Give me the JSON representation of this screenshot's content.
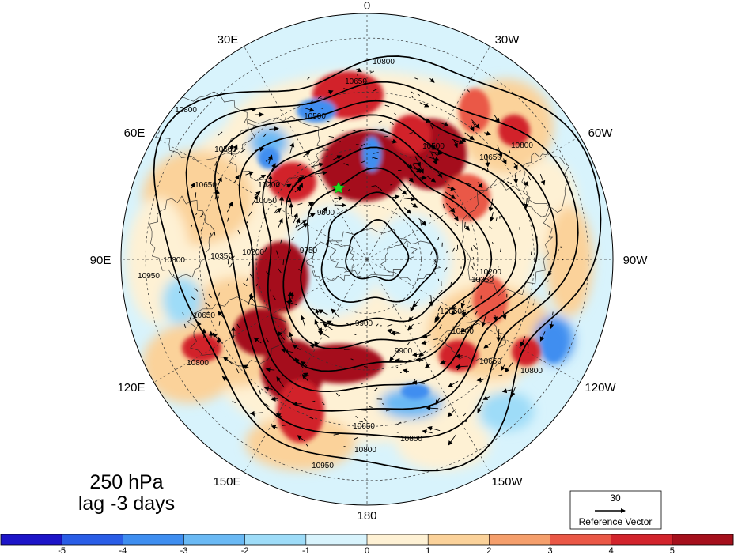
{
  "figure": {
    "level_label": "250 hPa",
    "lag_label": "lag -3 days"
  },
  "longitude_labels": [
    "0",
    "30W",
    "60W",
    "90W",
    "120W",
    "150W",
    "180",
    "150E",
    "120E",
    "90E",
    "60E",
    "30E"
  ],
  "contour_labels": [
    "10800",
    "10650",
    "10500",
    "10350",
    "10200",
    "10050",
    "9900",
    "9750",
    "10950"
  ],
  "colorbar": {
    "ticks": [
      "-5",
      "-4",
      "-3",
      "-2",
      "-1",
      "0",
      "1",
      "2",
      "3",
      "4",
      "5"
    ],
    "colors": [
      "#1d15c8",
      "#2a5de6",
      "#3f8ef0",
      "#6ab9f4",
      "#9edcf8",
      "#d8f3fc",
      "#fef1d4",
      "#fbd29a",
      "#f59f6c",
      "#ea5846",
      "#d2242c",
      "#a5101c"
    ]
  },
  "reference_vector": {
    "magnitude": "30",
    "label": "Reference Vector"
  },
  "chart_data": {
    "type": "heatmap",
    "projection": "north polar stereographic",
    "variable": "250 hPa",
    "lag": "lag -3 days",
    "colorbar_range": [
      -5,
      5
    ],
    "colorbar_interval": 1,
    "contour_levels": [
      9750,
      9900,
      10050,
      10200,
      10350,
      10500,
      10650,
      10800,
      10950
    ],
    "vectors": true,
    "reference_vector_magnitude": 30
  }
}
